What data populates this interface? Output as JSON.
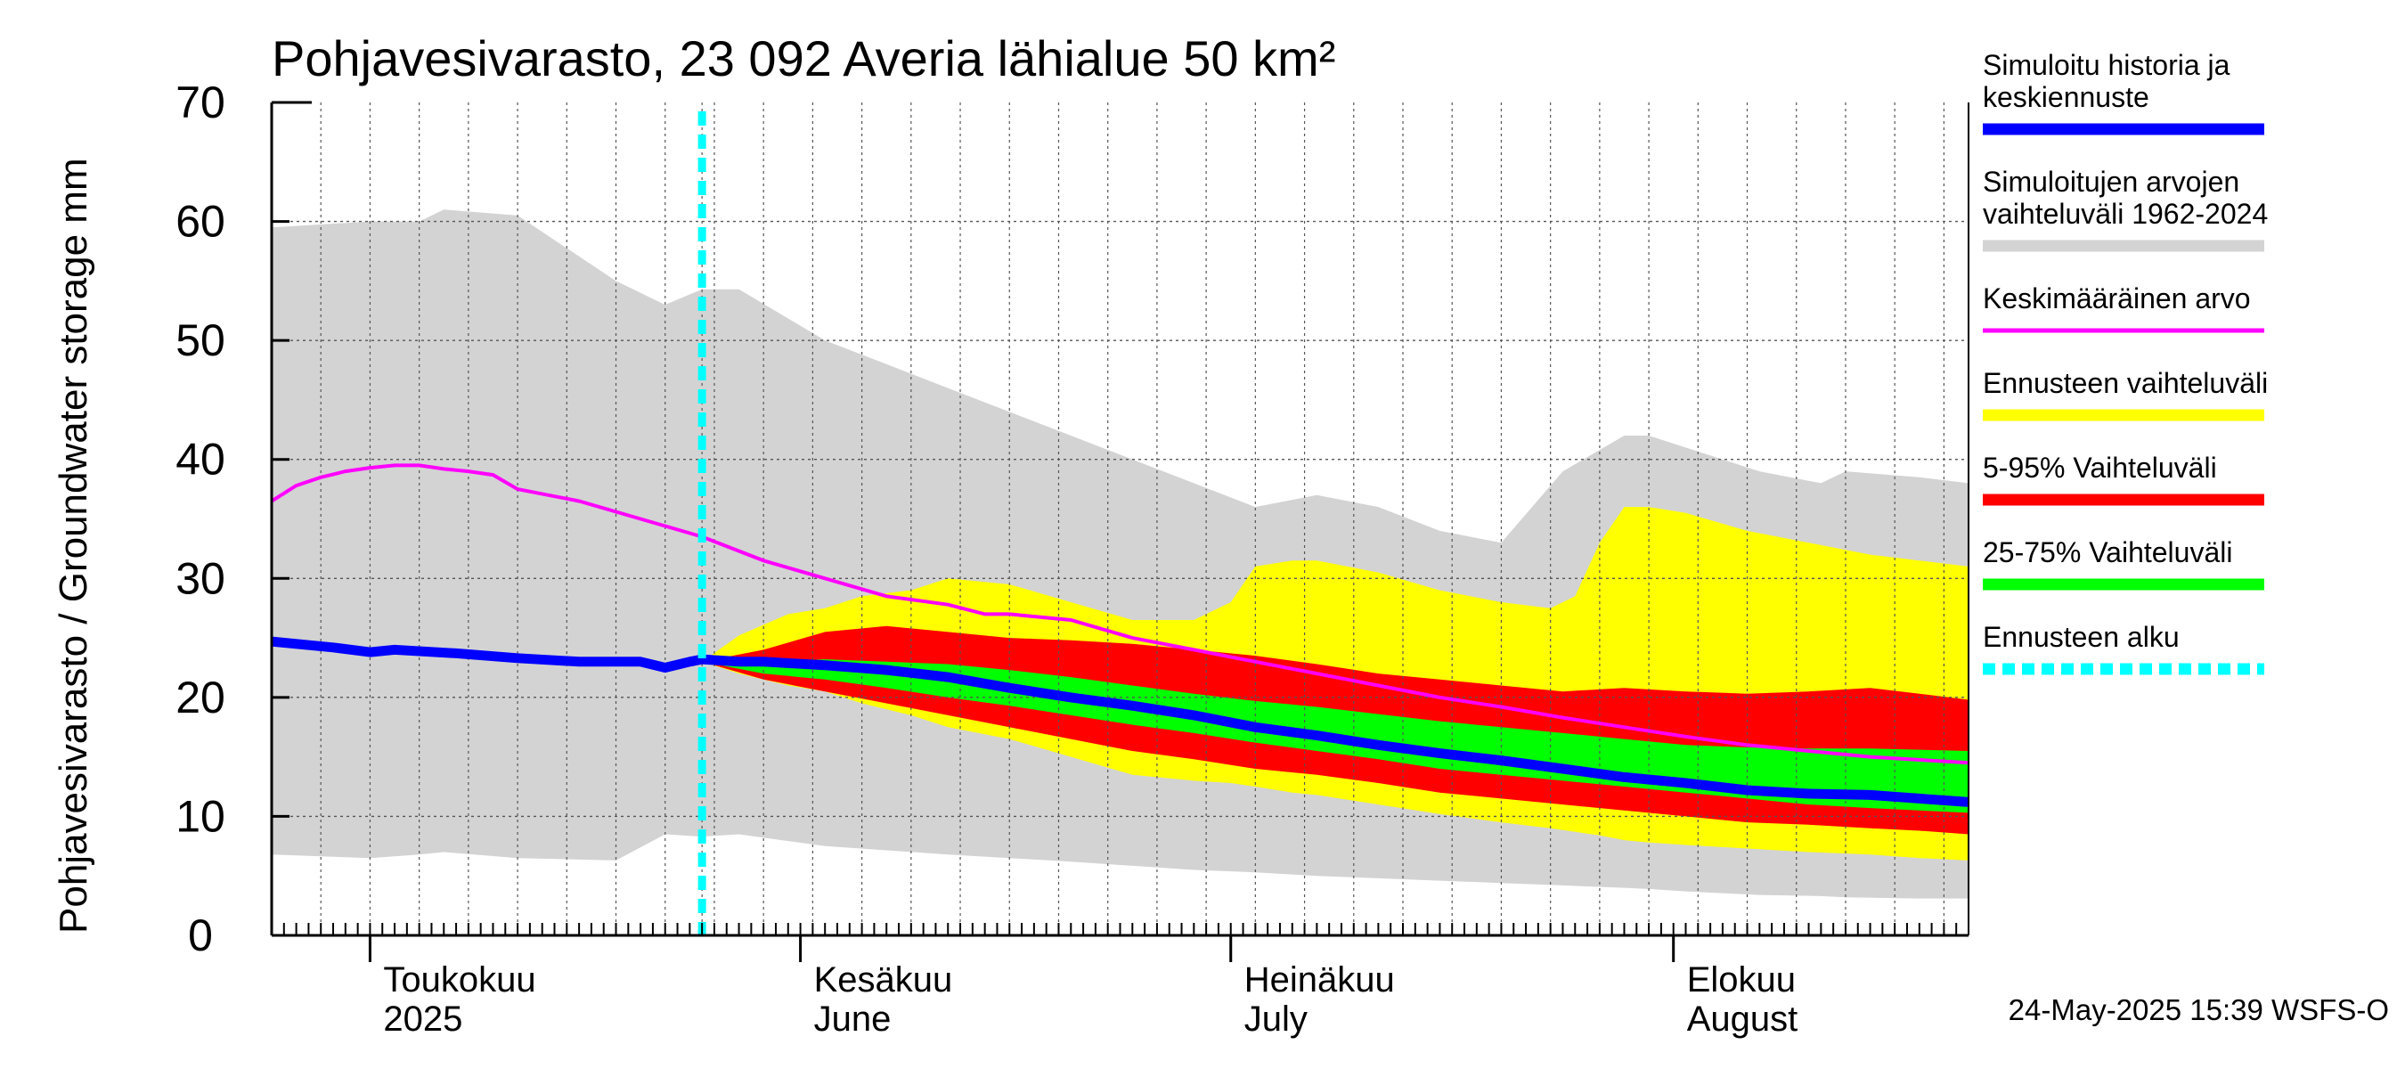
{
  "chart_data": {
    "type": "area",
    "title": "Pohjavesivarasto, 23 092 Averia lähialue 50 km²",
    "ylabel": "Pohjavesivarasto / Groundwater storage   mm",
    "ylim": [
      0,
      70
    ],
    "yticks": [
      "0",
      "10",
      "20",
      "30",
      "40",
      "50",
      "60",
      "70"
    ],
    "xlim_days": [
      0,
      138
    ],
    "month_ticks": [
      {
        "day": 8,
        "fi": "Toukokuu",
        "en": "2025"
      },
      {
        "day": 43,
        "fi": "Kesäkuu",
        "en": "June"
      },
      {
        "day": 78,
        "fi": "Heinäkuu",
        "en": "July"
      },
      {
        "day": 114,
        "fi": "Elokuu",
        "en": "August"
      }
    ],
    "forecast_start_day": 35,
    "footer": "24-May-2025 15:39 WSFS-O",
    "legend": [
      {
        "label": [
          "Simuloitu historia ja",
          "keskiennuste"
        ],
        "color": "#0000ff"
      },
      {
        "label": [
          "Simuloitujen arvojen",
          "vaihteluväli 1962-2024"
        ],
        "color": "#d3d3d3"
      },
      {
        "label": [
          "Keskimääräinen arvo"
        ],
        "color": "#ff00ff"
      },
      {
        "label": [
          "Ennusteen vaihteluväli"
        ],
        "color": "#ffff00"
      },
      {
        "label": [
          "5-95% Vaihteluväli"
        ],
        "color": "#ff0000"
      },
      {
        "label": [
          "25-75% Vaihteluväli"
        ],
        "color": "#00ff00"
      },
      {
        "label": [
          "Ennusteen alku"
        ],
        "color": "#00ffff"
      }
    ],
    "series": {
      "range_hist": {
        "x": [
          0,
          8,
          12,
          14,
          20,
          28,
          32,
          35,
          38,
          45,
          55,
          65,
          75,
          80,
          85,
          90,
          95,
          100,
          105,
          110,
          112,
          115,
          121,
          126,
          128,
          134,
          138
        ],
        "high": [
          59.5,
          60,
          60,
          61,
          60.5,
          55,
          53,
          54.3,
          54.3,
          50,
          46,
          42,
          38,
          36,
          37,
          36,
          34,
          33,
          39,
          42,
          42,
          41,
          39,
          38,
          39,
          38.5,
          38
        ],
        "low": [
          6.8,
          6.5,
          6.8,
          7,
          6.5,
          6.3,
          8.5,
          8.3,
          8.5,
          7.5,
          6.8,
          6.2,
          5.5,
          5.3,
          5,
          4.8,
          4.6,
          4.4,
          4.2,
          4,
          3.9,
          3.7,
          3.4,
          3.3,
          3.2,
          3.1,
          3.1
        ]
      },
      "mean": {
        "x": [
          0,
          2,
          4,
          6,
          8,
          10,
          12,
          14,
          16,
          18,
          20,
          25,
          30,
          35,
          40,
          45,
          50,
          55,
          58,
          60,
          65,
          70,
          75,
          80,
          85,
          90,
          95,
          100,
          105,
          110,
          115,
          120,
          125,
          130,
          138
        ],
        "values": [
          36.5,
          37.8,
          38.5,
          39,
          39.3,
          39.5,
          39.5,
          39.2,
          39,
          38.7,
          37.5,
          36.5,
          35,
          33.5,
          31.5,
          30,
          28.5,
          27.8,
          27,
          27,
          26.5,
          25,
          24,
          23,
          22,
          21,
          20,
          19.2,
          18.3,
          17.5,
          16.7,
          16,
          15.5,
          15,
          14.5
        ]
      },
      "ens_band": {
        "x": [
          35,
          38,
          42,
          45,
          48,
          52,
          55,
          60,
          65,
          70,
          75,
          78,
          80,
          83,
          85,
          90,
          95,
          100,
          104,
          106,
          108,
          110,
          112,
          115,
          120,
          125,
          130,
          134,
          138
        ],
        "high": [
          23,
          25.2,
          27,
          27.5,
          28.5,
          29,
          30,
          29.5,
          28,
          26.5,
          26.5,
          28,
          31,
          31.5,
          31.5,
          30.5,
          29,
          28,
          27.5,
          28.5,
          33,
          36,
          36,
          35.5,
          34,
          33,
          32,
          31.5,
          31
        ],
        "low": [
          23,
          22,
          21,
          20.5,
          19.5,
          18.5,
          17.5,
          16.5,
          15,
          13.5,
          13,
          12.8,
          12.5,
          12,
          11.8,
          11,
          10.2,
          9.5,
          9,
          8.7,
          8.4,
          8,
          7.8,
          7.6,
          7.3,
          7,
          6.8,
          6.5,
          6.3
        ]
      },
      "p5_95": {
        "x": [
          35,
          40,
          45,
          50,
          55,
          60,
          65,
          70,
          75,
          80,
          85,
          90,
          95,
          100,
          105,
          110,
          115,
          120,
          125,
          130,
          134,
          138
        ],
        "high": [
          23,
          24,
          25.5,
          26,
          25.5,
          25,
          24.8,
          24.5,
          24,
          23.5,
          22.8,
          22,
          21.5,
          21,
          20.5,
          20.8,
          20.5,
          20.3,
          20.5,
          20.8,
          20.3,
          19.8
        ],
        "low": [
          23,
          21.5,
          20.5,
          19.5,
          18.5,
          17.5,
          16.5,
          15.5,
          14.8,
          14,
          13.5,
          12.8,
          12,
          11.5,
          11,
          10.5,
          10,
          9.5,
          9.3,
          9,
          8.8,
          8.5
        ]
      },
      "p25_75": {
        "x": [
          35,
          40,
          45,
          50,
          55,
          60,
          65,
          70,
          75,
          80,
          85,
          90,
          95,
          100,
          105,
          110,
          115,
          120,
          125,
          130,
          134,
          138
        ],
        "high": [
          23,
          23,
          23.2,
          23,
          22.8,
          22.3,
          21.7,
          21,
          20.3,
          19.7,
          19.2,
          18.6,
          18,
          17.5,
          17,
          16.5,
          16,
          15.8,
          15.7,
          15.7,
          15.6,
          15.5
        ],
        "low": [
          23,
          22,
          21.5,
          20.8,
          20,
          19.3,
          18.5,
          17.7,
          17,
          16.2,
          15.5,
          14.8,
          14,
          13.5,
          13,
          12.5,
          12,
          11.5,
          11,
          10.7,
          10.5,
          10.3
        ]
      },
      "median": {
        "x": [
          0,
          5,
          8,
          10,
          15,
          20,
          25,
          30,
          32,
          34,
          35,
          38,
          40,
          45,
          50,
          55,
          60,
          65,
          70,
          75,
          80,
          85,
          90,
          95,
          100,
          105,
          110,
          115,
          120,
          125,
          130,
          134,
          138
        ],
        "values": [
          24.7,
          24.2,
          23.8,
          24,
          23.7,
          23.3,
          23,
          23,
          22.5,
          23,
          23.2,
          23,
          23,
          22.7,
          22.3,
          21.7,
          20.8,
          20,
          19.3,
          18.5,
          17.5,
          16.8,
          16,
          15.3,
          14.7,
          14,
          13.3,
          12.8,
          12.2,
          11.9,
          11.8,
          11.5,
          11.2
        ]
      }
    }
  }
}
